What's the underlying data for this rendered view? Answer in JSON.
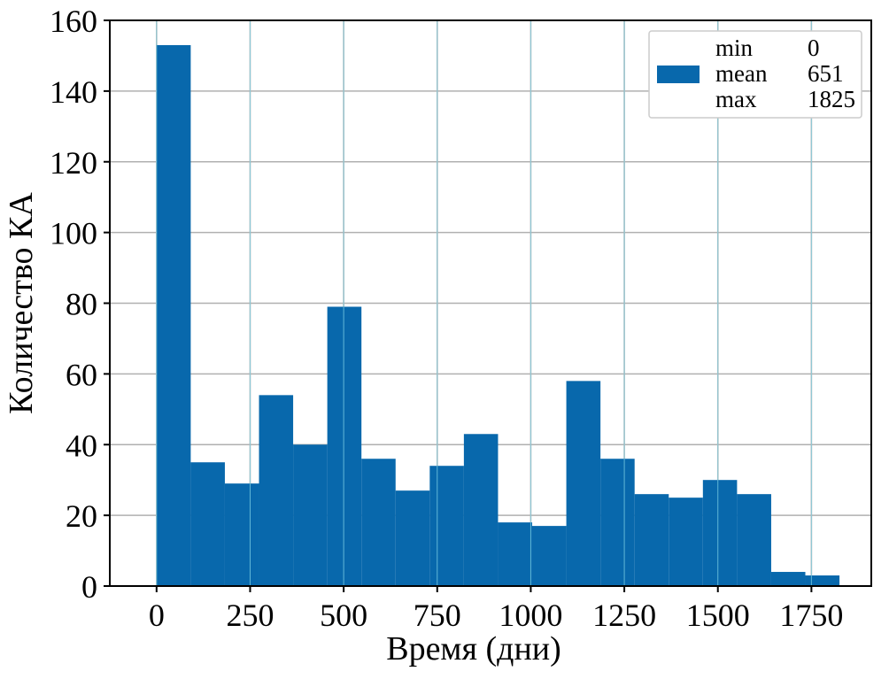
{
  "chart_data": {
    "type": "bar",
    "subtype": "histogram",
    "xlabel": "Время (дни)",
    "ylabel": "Количество КА",
    "xlim": [
      -125,
      1910
    ],
    "ylim": [
      0,
      160
    ],
    "xticks": [
      "0",
      "250",
      "500",
      "750",
      "1000",
      "1250",
      "1500",
      "1750"
    ],
    "xtick_values": [
      0,
      250,
      500,
      750,
      1000,
      1250,
      1500,
      1750
    ],
    "yticks": [
      "0",
      "20",
      "40",
      "60",
      "80",
      "100",
      "120",
      "140",
      "160"
    ],
    "ytick_values": [
      0,
      20,
      40,
      60,
      80,
      100,
      120,
      140,
      160
    ],
    "bin_edges": [
      0,
      91.25,
      182.5,
      273.75,
      365,
      456.25,
      547.5,
      638.75,
      730,
      821.25,
      912.5,
      1003.75,
      1095,
      1186.25,
      1277.5,
      1368.75,
      1460,
      1551.25,
      1642.5,
      1733.75,
      1825
    ],
    "values": [
      153,
      35,
      29,
      54,
      40,
      79,
      36,
      27,
      34,
      43,
      18,
      17,
      58,
      36,
      26,
      25,
      30,
      26,
      4,
      3
    ],
    "bar_color": "#0868ac",
    "grid": true,
    "legend": {
      "placement": "top-right",
      "rows": [
        {
          "label": "min",
          "value": "0"
        },
        {
          "label": "mean",
          "value": "651"
        },
        {
          "label": "max",
          "value": "1825"
        }
      ]
    }
  }
}
